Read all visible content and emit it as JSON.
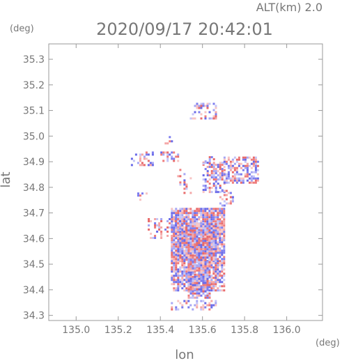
{
  "header": {
    "altitude": "ALT(km) 2.0",
    "timestamp": "2020/09/17 20:42:01"
  },
  "chart_data": {
    "type": "scatter",
    "title": "2020/09/17 20:42:01",
    "subtitle": "ALT(km) 2.0",
    "xlabel": "lon",
    "ylabel": "lat",
    "x_unit": "(deg)",
    "y_unit": "(deg)",
    "xlim": [
      134.87,
      136.17
    ],
    "ylim": [
      34.28,
      35.36
    ],
    "x_ticks": [
      135.0,
      135.2,
      135.4,
      135.6,
      135.8,
      136.0
    ],
    "x_tick_labels": [
      "135.0",
      "135.2",
      "135.4",
      "135.6",
      "135.8",
      "136.0"
    ],
    "y_ticks": [
      34.3,
      34.4,
      34.5,
      34.6,
      34.7,
      34.8,
      34.9,
      35.0,
      35.1,
      35.2,
      35.3
    ],
    "y_tick_labels": [
      "34.3",
      "34.4",
      "34.5",
      "34.6",
      "34.7",
      "34.8",
      "34.9",
      "35.0",
      "35.1",
      "35.2",
      "35.3"
    ],
    "grid": false,
    "colors": {
      "positive": "#ef7c7c",
      "negative": "#7c7cef",
      "frame": "#999999",
      "text": "#777777"
    },
    "clusters": [
      {
        "lon": [
          135.45,
          135.7
        ],
        "lat": [
          34.4,
          34.72
        ],
        "density": 0.85
      },
      {
        "lon": [
          135.48,
          135.66
        ],
        "lat": [
          34.52,
          34.66
        ],
        "density": 0.9
      },
      {
        "lon": [
          135.53,
          135.63
        ],
        "lat": [
          34.37,
          34.52
        ],
        "density": 0.8
      },
      {
        "lon": [
          135.6,
          135.7
        ],
        "lat": [
          34.78,
          34.9
        ],
        "density": 0.5
      },
      {
        "lon": [
          135.7,
          135.86
        ],
        "lat": [
          34.82,
          34.92
        ],
        "density": 0.55
      },
      {
        "lon": [
          135.68,
          135.74
        ],
        "lat": [
          34.73,
          34.79
        ],
        "density": 0.45
      },
      {
        "lon": [
          135.45,
          135.66
        ],
        "lat": [
          34.325,
          34.36
        ],
        "density": 0.35
      },
      {
        "lon": [
          135.34,
          135.52
        ],
        "lat": [
          34.6,
          34.68
        ],
        "density": 0.35
      },
      {
        "lon": [
          135.48,
          135.55
        ],
        "lat": [
          34.78,
          34.88
        ],
        "density": 0.25
      },
      {
        "lon": [
          135.26,
          135.36
        ],
        "lat": [
          34.89,
          34.94
        ],
        "density": 0.3
      },
      {
        "lon": [
          135.4,
          135.48
        ],
        "lat": [
          34.9,
          34.94
        ],
        "density": 0.3
      },
      {
        "lon": [
          135.54,
          135.66
        ],
        "lat": [
          35.07,
          35.13
        ],
        "density": 0.35
      },
      {
        "lon": [
          135.42,
          135.45
        ],
        "lat": [
          34.97,
          35.0
        ],
        "density": 0.3
      },
      {
        "lon": [
          135.29,
          135.33
        ],
        "lat": [
          34.74,
          34.78
        ],
        "density": 0.25
      },
      {
        "lon": [
          135.6,
          135.65
        ],
        "lat": [
          34.89,
          34.93
        ],
        "density": 0.4
      }
    ]
  }
}
